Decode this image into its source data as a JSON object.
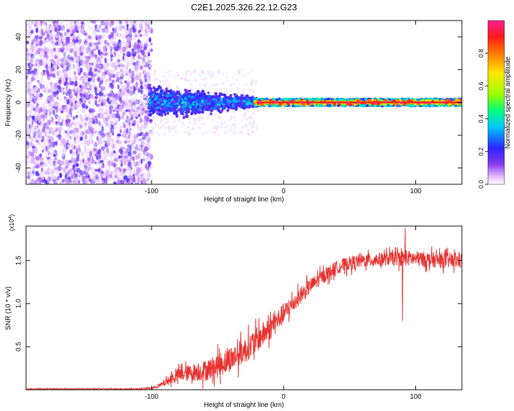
{
  "title": "C2E1.2025.326.22.12.G23",
  "chart_data": [
    {
      "type": "heatmap",
      "title": "C2E1.2025.326.22.12.G23",
      "xlabel": "Height of straight line (km)",
      "ylabel": "Frequency (Hz)",
      "xlim": [
        -195,
        135
      ],
      "ylim": [
        -50,
        50
      ],
      "x_ticks": [
        -100,
        0,
        100
      ],
      "x_tick_labels": [
        "-100",
        "0",
        "100"
      ],
      "y_ticks": [
        -40,
        -20,
        0,
        20,
        40
      ],
      "y_tick_labels": [
        "-40",
        "-20",
        "0",
        "20",
        "40"
      ],
      "colorbar": {
        "label": "Normalized spectral amplitude",
        "range": [
          0,
          1
        ],
        "ticks": [
          0.0,
          0.2,
          0.4,
          0.6,
          0.8
        ],
        "tick_labels": [
          "0.0",
          "0.2",
          "0.4",
          "0.6",
          "0.8"
        ],
        "colormap": [
          "#ffffff",
          "#e0b8ff",
          "#8a3cf0",
          "#2a22ff",
          "#00c8ff",
          "#00ff7a",
          "#9cff00",
          "#ffe600",
          "#ff7a00",
          "#ff1a1a",
          "#ff2090"
        ]
      },
      "description_bands": [
        {
          "x_range": [
            -195,
            -100
          ],
          "frequency_range": [
            -50,
            50
          ],
          "amplitude": 0.15
        },
        {
          "x_range": [
            -100,
            -20
          ],
          "frequency_center": 0,
          "spread_hz": [
            8,
            3
          ],
          "amplitude": [
            0.3,
            0.5
          ]
        },
        {
          "x_range": [
            -20,
            135
          ],
          "frequency_center": 0,
          "spread_hz": 2,
          "amplitude": 0.95
        }
      ]
    },
    {
      "type": "line",
      "xlabel": "Height of straight line (km)",
      "ylabel": "SNR (10 * v/v)",
      "y_multiplier_label": "(x10",
      "y_multiplier_exp": "4",
      "y_multiplier_close": ")",
      "color": "#e8302e",
      "xlim": [
        -195,
        135
      ],
      "ylim": [
        0,
        1.9
      ],
      "x_ticks": [
        -100,
        0,
        100
      ],
      "x_tick_labels": [
        "-100",
        "0",
        "100"
      ],
      "y_ticks": [
        0.5,
        1.0,
        1.5
      ],
      "y_tick_labels": [
        "0.5",
        "1.0",
        "1.5"
      ],
      "x": [
        -195,
        -150,
        -110,
        -100,
        -95,
        -90,
        -85,
        -80,
        -70,
        -60,
        -50,
        -40,
        -30,
        -20,
        -10,
        0,
        10,
        20,
        30,
        40,
        50,
        60,
        70,
        80,
        90,
        100,
        110,
        120,
        135
      ],
      "values": [
        0.01,
        0.01,
        0.01,
        0.02,
        0.04,
        0.08,
        0.13,
        0.17,
        0.2,
        0.22,
        0.28,
        0.36,
        0.45,
        0.58,
        0.72,
        0.88,
        1.05,
        1.2,
        1.32,
        1.42,
        1.47,
        1.5,
        1.51,
        1.52,
        1.53,
        1.52,
        1.51,
        1.5,
        1.5
      ],
      "noise_amplitude": [
        0.005,
        0.005,
        0.005,
        0.01,
        0.02,
        0.04,
        0.06,
        0.08,
        0.1,
        0.12,
        0.14,
        0.15,
        0.15,
        0.15,
        0.14,
        0.12,
        0.1,
        0.09,
        0.08,
        0.08,
        0.08,
        0.08,
        0.08,
        0.08,
        0.09,
        0.09,
        0.09,
        0.09,
        0.09
      ],
      "annotations": [
        {
          "x": 90,
          "value": 0.8,
          "note": "dip"
        },
        {
          "x": 92,
          "value": 1.88,
          "note": "peak"
        }
      ]
    }
  ]
}
